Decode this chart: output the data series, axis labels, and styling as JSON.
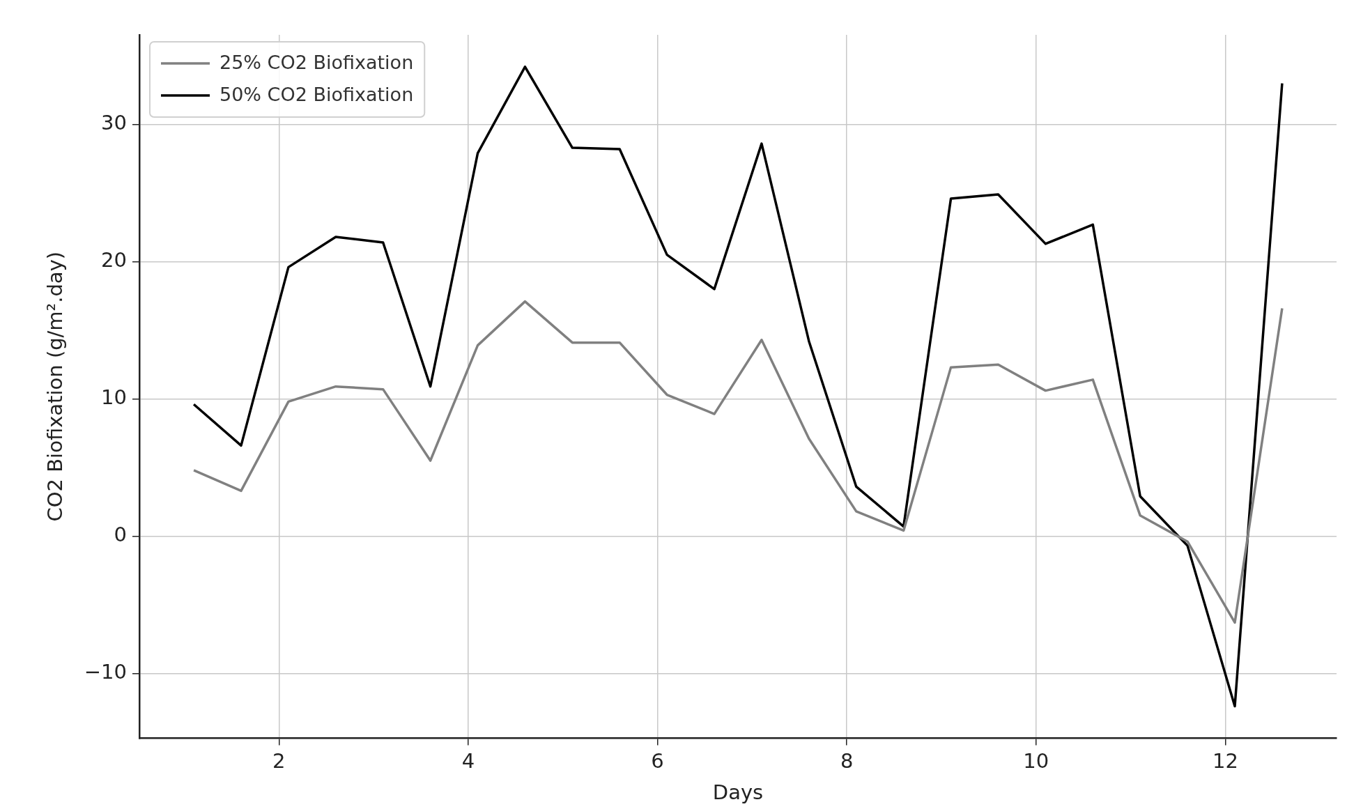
{
  "chart_data": {
    "type": "line",
    "xlabel": "Days",
    "ylabel": "CO2 Biofixation (g/m².day)",
    "x": [
      1.1,
      1.6,
      2.1,
      2.6,
      3.1,
      3.6,
      4.1,
      4.6,
      5.1,
      5.6,
      6.1,
      6.6,
      7.1,
      7.6,
      8.1,
      8.6,
      9.1,
      9.6,
      10.1,
      10.6,
      11.1,
      11.6,
      12.1,
      12.6
    ],
    "series": [
      {
        "name": "25% CO2 Biofixation",
        "color": "#808080",
        "values": [
          4.8,
          3.3,
          9.8,
          10.9,
          10.7,
          5.5,
          13.9,
          17.1,
          14.1,
          14.1,
          10.3,
          8.9,
          14.3,
          7.1,
          1.8,
          0.4,
          12.3,
          12.5,
          10.6,
          11.4,
          1.5,
          -0.4,
          -6.3,
          16.6
        ]
      },
      {
        "name": "50% CO2 Biofixation",
        "color": "#000000",
        "values": [
          9.6,
          6.6,
          19.6,
          21.8,
          21.4,
          10.9,
          27.9,
          34.2,
          28.3,
          28.2,
          20.5,
          18.0,
          28.6,
          14.2,
          3.6,
          0.7,
          24.6,
          24.9,
          21.3,
          22.7,
          2.9,
          -0.7,
          -12.4,
          33.0
        ]
      }
    ],
    "xlim": [
      0.525,
      13.175
    ],
    "xticks": [
      2,
      4,
      6,
      8,
      10,
      12
    ],
    "ylim": [
      -14.73,
      36.53
    ],
    "yticks": [
      -10,
      0,
      10,
      20,
      30
    ],
    "grid": true,
    "legend": "top left",
    "line_style": "solid",
    "marker": "none"
  }
}
